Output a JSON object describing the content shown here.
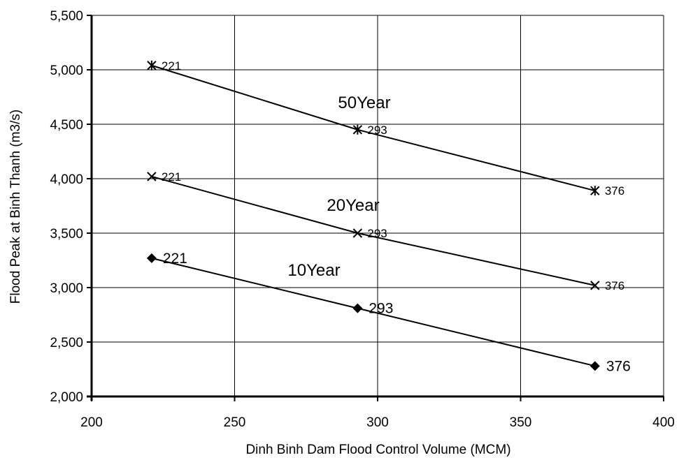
{
  "chart_data": {
    "type": "line",
    "title": "",
    "xlabel": "Dinh Binh Dam Flood Control Volume (MCM)",
    "ylabel": "Flood Peak at Binh Thanh (m3/s)",
    "xlim": [
      200,
      400
    ],
    "ylim": [
      2000,
      5500
    ],
    "x_ticks": [
      200,
      250,
      300,
      350,
      400
    ],
    "x_tick_labels": [
      "200",
      "250",
      "300",
      "350",
      "400"
    ],
    "y_ticks": [
      2000,
      2500,
      3000,
      3500,
      4000,
      4500,
      5000,
      5500
    ],
    "y_tick_labels": [
      "2,000",
      "2,500",
      "3,000",
      "3,500",
      "4,000",
      "4,500",
      "5,000",
      "5,500"
    ],
    "grid": true,
    "legend": "none",
    "line_color": "#000000",
    "series": [
      {
        "name": "50Year",
        "marker": "asterisk",
        "x": [
          221,
          293,
          376
        ],
        "y": [
          5040,
          4450,
          3890
        ],
        "point_labels": [
          "221",
          "293",
          "376"
        ]
      },
      {
        "name": "20Year",
        "marker": "x",
        "x": [
          221,
          293,
          376
        ],
        "y": [
          4020,
          3500,
          3020
        ],
        "point_labels": [
          "221",
          "293",
          "376"
        ]
      },
      {
        "name": "10Year",
        "marker": "diamond",
        "x": [
          221,
          293,
          376
        ],
        "y": [
          3270,
          2810,
          2280
        ],
        "point_labels": [
          "221",
          "293",
          "376"
        ]
      }
    ]
  }
}
